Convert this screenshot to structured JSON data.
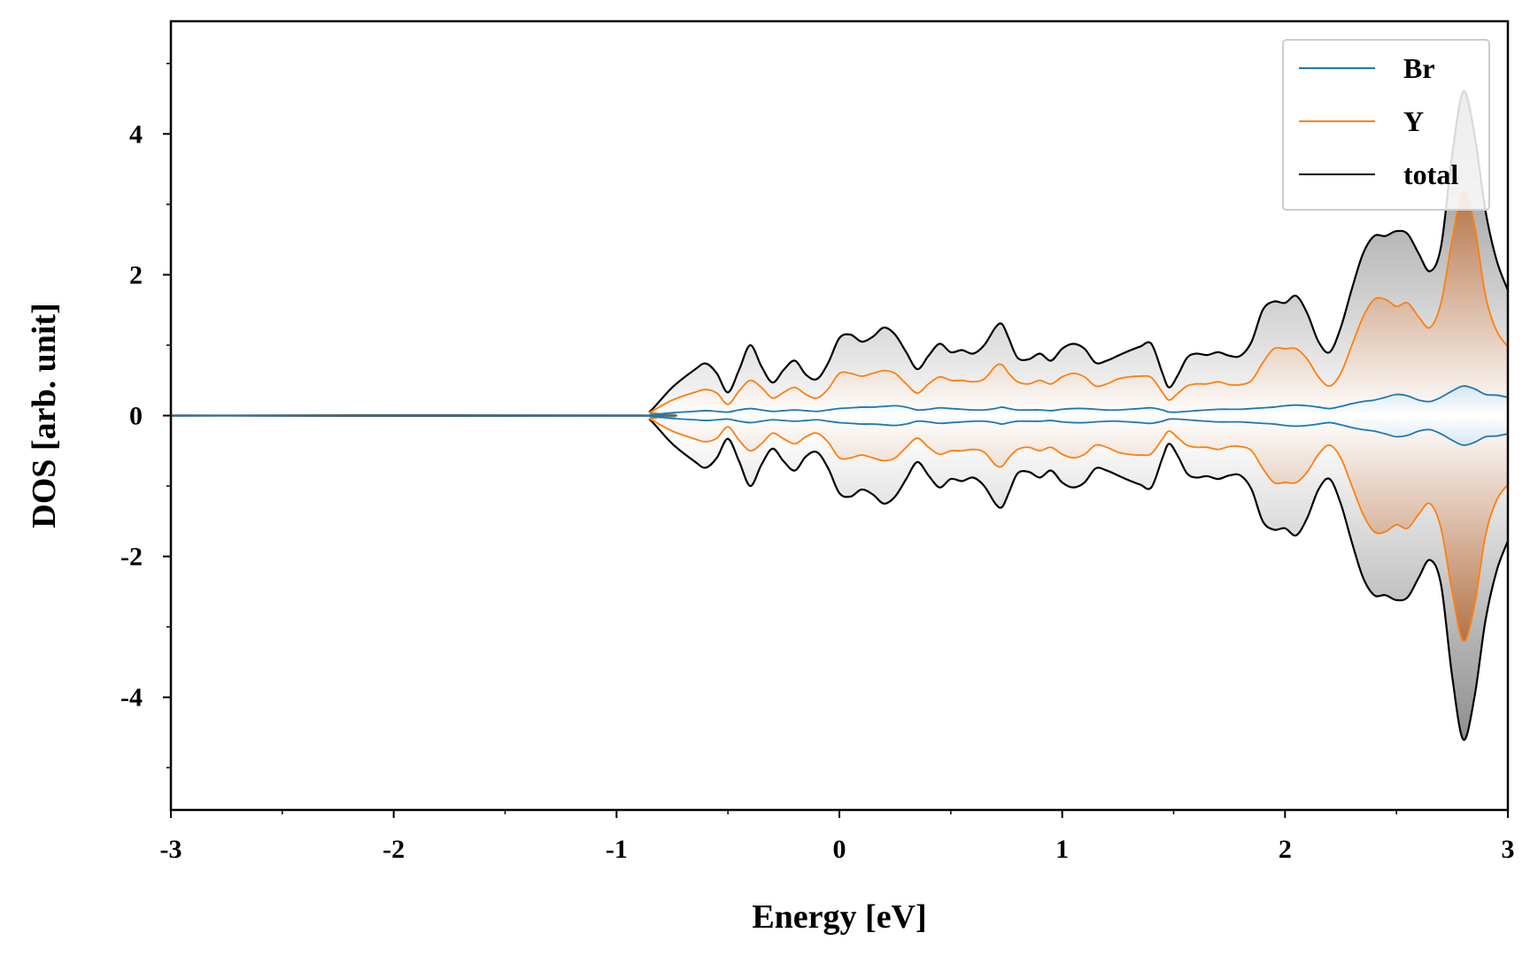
{
  "chart_data": {
    "type": "line",
    "xlabel": "Energy [eV]",
    "ylabel": "DOS [arb. unit]",
    "xlim": [
      -3,
      3
    ],
    "ylim": [
      -5.6,
      5.6
    ],
    "x_ticks": [
      -3,
      -2,
      -1,
      0,
      1,
      2,
      3
    ],
    "y_ticks": [
      -4,
      -2,
      0,
      2,
      4
    ],
    "mirrored": true,
    "fill": "gradient shading between curve and mirror",
    "legend_position": "top-right",
    "colors": {
      "Br": "#1f77b4",
      "Y": "#ff7f0e",
      "total": "#000000"
    },
    "x": [
      -3.0,
      -0.9,
      -0.85,
      -0.75,
      -0.65,
      -0.6,
      -0.55,
      -0.5,
      -0.45,
      -0.4,
      -0.35,
      -0.3,
      -0.25,
      -0.2,
      -0.15,
      -0.1,
      -0.05,
      0.0,
      0.05,
      0.1,
      0.15,
      0.2,
      0.25,
      0.3,
      0.35,
      0.4,
      0.45,
      0.5,
      0.55,
      0.6,
      0.65,
      0.7,
      0.73,
      0.76,
      0.8,
      0.85,
      0.9,
      0.95,
      1.0,
      1.05,
      1.1,
      1.15,
      1.2,
      1.25,
      1.3,
      1.35,
      1.4,
      1.45,
      1.48,
      1.52,
      1.56,
      1.6,
      1.65,
      1.7,
      1.75,
      1.8,
      1.85,
      1.9,
      1.95,
      2.0,
      2.05,
      2.1,
      2.15,
      2.2,
      2.25,
      2.3,
      2.35,
      2.4,
      2.45,
      2.5,
      2.55,
      2.6,
      2.65,
      2.7,
      2.75,
      2.8,
      2.85,
      2.9,
      2.95,
      3.0
    ],
    "series": [
      {
        "name": "Br",
        "values": [
          0.0,
          0.0,
          0.01,
          0.04,
          0.06,
          0.07,
          0.06,
          0.05,
          0.08,
          0.1,
          0.08,
          0.06,
          0.07,
          0.08,
          0.07,
          0.06,
          0.08,
          0.1,
          0.11,
          0.12,
          0.12,
          0.13,
          0.14,
          0.12,
          0.08,
          0.09,
          0.11,
          0.1,
          0.09,
          0.08,
          0.08,
          0.1,
          0.12,
          0.1,
          0.08,
          0.08,
          0.08,
          0.07,
          0.09,
          0.1,
          0.1,
          0.09,
          0.08,
          0.08,
          0.09,
          0.1,
          0.11,
          0.08,
          0.05,
          0.05,
          0.06,
          0.07,
          0.08,
          0.09,
          0.09,
          0.09,
          0.1,
          0.11,
          0.12,
          0.14,
          0.15,
          0.14,
          0.12,
          0.1,
          0.13,
          0.17,
          0.2,
          0.22,
          0.26,
          0.3,
          0.28,
          0.22,
          0.2,
          0.26,
          0.35,
          0.42,
          0.38,
          0.3,
          0.29,
          0.26
        ]
      },
      {
        "name": "Y",
        "values": [
          0.0,
          0.0,
          0.05,
          0.22,
          0.33,
          0.37,
          0.32,
          0.16,
          0.35,
          0.5,
          0.4,
          0.25,
          0.33,
          0.4,
          0.3,
          0.25,
          0.38,
          0.6,
          0.6,
          0.56,
          0.6,
          0.64,
          0.6,
          0.45,
          0.32,
          0.45,
          0.55,
          0.5,
          0.5,
          0.48,
          0.52,
          0.7,
          0.72,
          0.6,
          0.48,
          0.45,
          0.5,
          0.45,
          0.55,
          0.6,
          0.55,
          0.42,
          0.45,
          0.52,
          0.55,
          0.56,
          0.54,
          0.33,
          0.22,
          0.32,
          0.42,
          0.45,
          0.45,
          0.48,
          0.44,
          0.44,
          0.5,
          0.75,
          0.95,
          0.95,
          0.95,
          0.8,
          0.55,
          0.42,
          0.6,
          1.0,
          1.4,
          1.65,
          1.65,
          1.55,
          1.6,
          1.4,
          1.25,
          1.6,
          2.5,
          3.2,
          2.7,
          1.7,
          1.2,
          0.98
        ]
      },
      {
        "name": "total",
        "values": [
          0.0,
          0.0,
          0.06,
          0.4,
          0.65,
          0.74,
          0.6,
          0.33,
          0.65,
          1.0,
          0.7,
          0.47,
          0.65,
          0.78,
          0.58,
          0.52,
          0.75,
          1.1,
          1.15,
          1.05,
          1.12,
          1.25,
          1.15,
          0.9,
          0.66,
          0.85,
          1.02,
          0.9,
          0.93,
          0.88,
          1.0,
          1.25,
          1.3,
          1.1,
          0.82,
          0.8,
          0.88,
          0.78,
          0.95,
          1.02,
          0.95,
          0.75,
          0.78,
          0.85,
          0.92,
          0.98,
          1.02,
          0.6,
          0.4,
          0.58,
          0.82,
          0.88,
          0.86,
          0.9,
          0.85,
          0.85,
          1.05,
          1.5,
          1.62,
          1.6,
          1.7,
          1.45,
          1.05,
          0.9,
          1.25,
          1.8,
          2.3,
          2.55,
          2.55,
          2.62,
          2.58,
          2.3,
          2.05,
          2.4,
          3.7,
          4.6,
          4.0,
          2.9,
          2.2,
          1.78
        ]
      }
    ]
  }
}
